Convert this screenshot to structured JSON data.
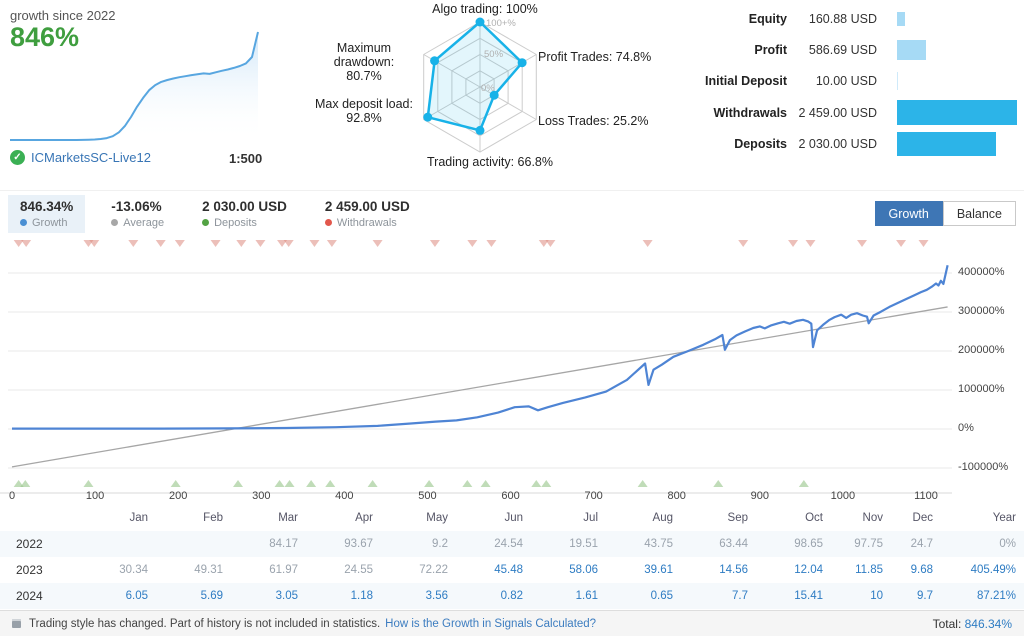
{
  "header": {
    "growth": {
      "label": "growth since 2022",
      "value": "846%"
    },
    "broker": {
      "name": "ICMarketsSC-Live12",
      "leverage": "1:500",
      "verified_icon": "check-circle-icon"
    },
    "account_summary": {
      "max_amount": 2459,
      "rows": [
        {
          "label": "Equity",
          "value": "160.88 USD",
          "amount": 160.88,
          "bar_color": "#a6daf5"
        },
        {
          "label": "Profit",
          "value": "586.69 USD",
          "amount": 586.69,
          "bar_color": "#a6daf5"
        },
        {
          "label": "Initial Deposit",
          "value": "10.00 USD",
          "amount": 10,
          "bar_color": "#cfeafa"
        },
        {
          "label": "Withdrawals",
          "value": "2 459.00 USD",
          "amount": 2459,
          "bar_color": "#2cb4e8"
        },
        {
          "label": "Deposits",
          "value": "2 030.00 USD",
          "amount": 2030,
          "bar_color": "#2cb4e8"
        }
      ]
    }
  },
  "stats_bar": {
    "items": [
      {
        "value": "846.34%",
        "label": "Growth",
        "dot_color": "#4a8fd3",
        "selected": true
      },
      {
        "value": "-13.06%",
        "label": "Average",
        "dot_color": "#a7a7a7",
        "selected": false
      },
      {
        "value": "2 030.00 USD",
        "label": "Deposits",
        "dot_color": "#53a344",
        "selected": false
      },
      {
        "value": "2 459.00 USD",
        "label": "Withdrawals",
        "dot_color": "#e2574c",
        "selected": false
      }
    ],
    "buttons": [
      {
        "label": "Growth",
        "active": true
      },
      {
        "label": "Balance",
        "active": false
      }
    ]
  },
  "chart_data": [
    {
      "type": "line",
      "title": "growth since 2022 sparkline",
      "max_value": 846,
      "values": [
        0,
        0,
        0,
        0,
        0,
        0,
        0,
        0,
        0,
        0,
        0,
        0,
        1,
        2,
        4,
        8,
        15,
        30,
        60,
        110,
        180,
        260,
        330,
        390,
        430,
        455,
        470,
        482,
        492,
        500,
        508,
        515,
        522,
        518,
        530,
        542,
        552,
        565,
        580,
        600,
        650,
        846
      ],
      "line_color": "#58a6e0",
      "fill_color": "rgba(150,200,240,0.45)"
    },
    {
      "type": "radar",
      "title": "trading statistics radar",
      "axes": [
        {
          "label": "Algo trading: 100%",
          "value": 100
        },
        {
          "label": "Profit Trades: 74.8%",
          "value": 74.8
        },
        {
          "label": "Loss Trades: 25.2%",
          "value": 25.2
        },
        {
          "label": "Trading activity: 66.8%",
          "value": 66.8
        },
        {
          "label": "Max deposit load:",
          "value_label": "92.8%",
          "value": 92.8
        },
        {
          "label": "Maximum drawdown:",
          "value_label": "80.7%",
          "value": 80.7
        }
      ],
      "ring_labels": [
        "100+%",
        "50%",
        "0%"
      ],
      "line_color": "#18b2e8",
      "fill_color": "rgba(24,178,232,0.12)",
      "grid_color": "#cccccc"
    },
    {
      "type": "line",
      "title": "Growth history",
      "x_ticks": [
        0,
        100,
        200,
        300,
        400,
        500,
        600,
        700,
        800,
        900,
        1000,
        1100
      ],
      "y_ticks": [
        {
          "label": "400000%",
          "value": 400000
        },
        {
          "label": "300000%",
          "value": 300000
        },
        {
          "label": "200000%",
          "value": 200000
        },
        {
          "label": "100000%",
          "value": 100000
        },
        {
          "label": "0%",
          "value": 0
        },
        {
          "label": "-100000%",
          "value": -100000
        }
      ],
      "x_range": [
        0,
        1150
      ],
      "y_range": [
        -150000,
        450000
      ],
      "grid": true,
      "line_color": "#4e84d4",
      "trend_color": "#a6a6a6",
      "trend": {
        "x1": 0,
        "y1": -97000,
        "x2": 1126,
        "y2": 313000
      },
      "points": [
        [
          0,
          1000
        ],
        [
          180,
          1000
        ],
        [
          260,
          1500
        ],
        [
          330,
          2500
        ],
        [
          390,
          4500
        ],
        [
          440,
          8000
        ],
        [
          480,
          14000
        ],
        [
          510,
          19000
        ],
        [
          535,
          22000
        ],
        [
          560,
          30000
        ],
        [
          585,
          42000
        ],
        [
          605,
          56000
        ],
        [
          622,
          58000
        ],
        [
          633,
          48000
        ],
        [
          645,
          56000
        ],
        [
          663,
          67000
        ],
        [
          690,
          81000
        ],
        [
          715,
          96000
        ],
        [
          740,
          126000
        ],
        [
          762,
          168000
        ],
        [
          766,
          113000
        ],
        [
          772,
          152000
        ],
        [
          782,
          165000
        ],
        [
          796,
          185000
        ],
        [
          815,
          201000
        ],
        [
          832,
          216000
        ],
        [
          846,
          230000
        ],
        [
          855,
          241000
        ],
        [
          858,
          203000
        ],
        [
          864,
          228000
        ],
        [
          872,
          240000
        ],
        [
          882,
          250000
        ],
        [
          892,
          259000
        ],
        [
          900,
          263000
        ],
        [
          906,
          258000
        ],
        [
          914,
          266000
        ],
        [
          922,
          271000
        ],
        [
          929,
          275000
        ],
        [
          936,
          270000
        ],
        [
          944,
          277000
        ],
        [
          952,
          280000
        ],
        [
          958,
          276000
        ],
        [
          962,
          270000
        ],
        [
          964,
          210000
        ],
        [
          969,
          253000
        ],
        [
          976,
          267000
        ],
        [
          984,
          280000
        ],
        [
          990,
          287000
        ],
        [
          998,
          293000
        ],
        [
          1004,
          285000
        ],
        [
          1010,
          293000
        ],
        [
          1017,
          297000
        ],
        [
          1024,
          291000
        ],
        [
          1029,
          288000
        ],
        [
          1031,
          271000
        ],
        [
          1037,
          291000
        ],
        [
          1046,
          301000
        ],
        [
          1056,
          313000
        ],
        [
          1066,
          323000
        ],
        [
          1076,
          333000
        ],
        [
          1086,
          343000
        ],
        [
          1094,
          351000
        ],
        [
          1101,
          357000
        ],
        [
          1107,
          365000
        ],
        [
          1112,
          373000
        ],
        [
          1115,
          368000
        ],
        [
          1118,
          380000
        ],
        [
          1121,
          372000
        ],
        [
          1126,
          420000
        ]
      ],
      "withdrawal_marker_x": [
        8,
        17,
        92,
        99,
        146,
        179,
        202,
        245,
        276,
        299,
        325,
        333,
        364,
        385,
        440,
        509,
        554,
        577,
        640,
        648,
        765,
        880,
        940,
        961,
        1023,
        1070,
        1097
      ],
      "deposit_marker_x": [
        8,
        16,
        92,
        197,
        272,
        322,
        334,
        360,
        383,
        434,
        502,
        548,
        570,
        631,
        643,
        759,
        850,
        953
      ],
      "withdrawal_marker_color": "#dc8b80",
      "deposit_marker_color": "#96c488"
    }
  ],
  "table": {
    "columns": [
      "Jan",
      "Feb",
      "Mar",
      "Apr",
      "May",
      "Jun",
      "Jul",
      "Aug",
      "Sep",
      "Oct",
      "Nov",
      "Dec",
      "Year"
    ],
    "rows": [
      {
        "year": "2022",
        "muted_upto": 13,
        "values": [
          "",
          "",
          "84.17",
          "93.67",
          "9.2",
          "24.54",
          "19.51",
          "43.75",
          "63.44",
          "98.65",
          "97.75",
          "24.7",
          "0%"
        ]
      },
      {
        "year": "2023",
        "muted_upto": 5,
        "values": [
          "30.34",
          "49.31",
          "61.97",
          "24.55",
          "72.22",
          "45.48",
          "58.06",
          "39.61",
          "14.56",
          "12.04",
          "11.85",
          "9.68",
          "405.49%"
        ]
      },
      {
        "year": "2024",
        "muted_upto": 0,
        "values": [
          "6.05",
          "5.69",
          "3.05",
          "1.18",
          "3.56",
          "0.82",
          "1.61",
          "0.65",
          "7.7",
          "15.41",
          "10",
          "9.7",
          "87.21%"
        ]
      }
    ]
  },
  "footer": {
    "message": "Trading style has changed. Part of history is not included in statistics.",
    "link": "How is the Growth in Signals Calculated?",
    "total_label": "Total:",
    "total_value": "846.34%"
  }
}
